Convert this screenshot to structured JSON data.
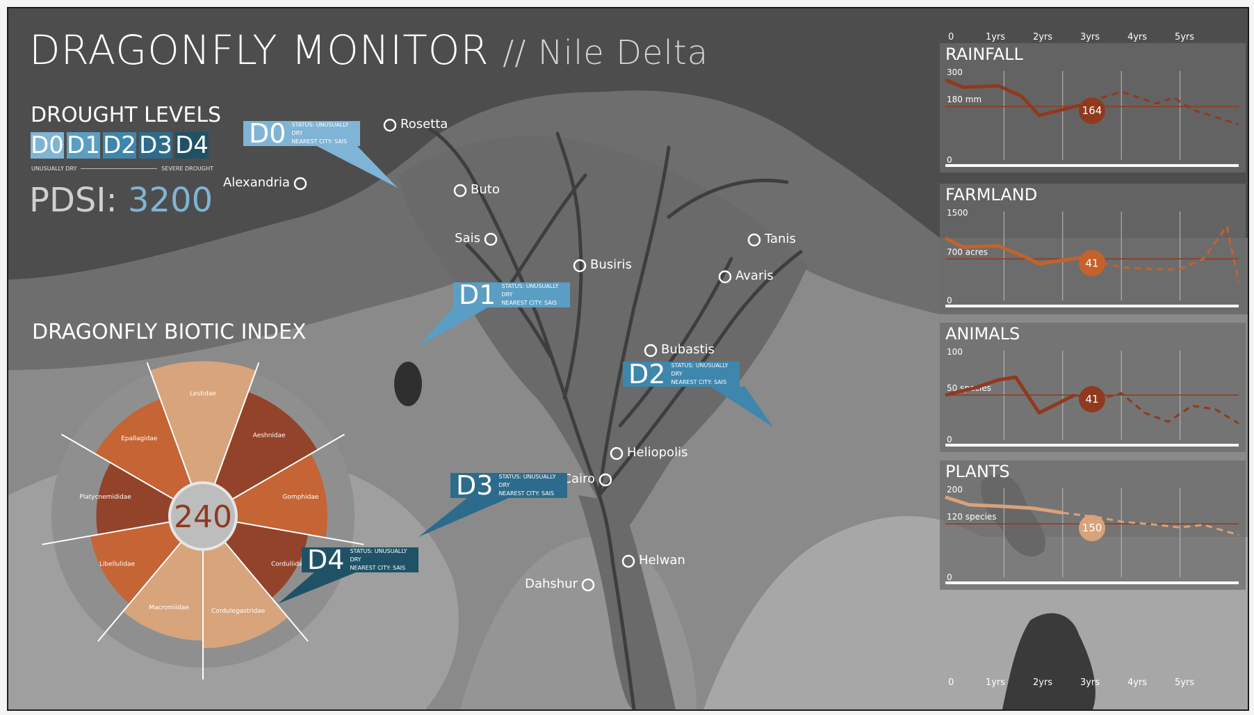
{
  "header": {
    "title": "DRAGONFLY MONITOR",
    "subtitle": "// Nile Delta"
  },
  "drought": {
    "title": "DROUGHT LEVELS",
    "levels": [
      {
        "code": "D0",
        "color": "#7fb4d6"
      },
      {
        "code": "D1",
        "color": "#5a9ec4"
      },
      {
        "code": "D2",
        "color": "#3f86ad"
      },
      {
        "code": "D3",
        "color": "#2d6b8c"
      },
      {
        "code": "D4",
        "color": "#1f5266"
      }
    ],
    "scale_left": "UNUSUALLY DRY",
    "scale_right": "SEVERE DROUGHT",
    "pdsi_label": "PDSI:",
    "pdsi_value": "3200"
  },
  "biotic": {
    "title": "DRAGONFLY BIOTIC INDEX",
    "center_value": "240"
  },
  "cities": [
    {
      "name": "Rosetta"
    },
    {
      "name": "Alexandria"
    },
    {
      "name": "Buto"
    },
    {
      "name": "Sais"
    },
    {
      "name": "Busiris"
    },
    {
      "name": "Tanis"
    },
    {
      "name": "Avaris"
    },
    {
      "name": "Bubastis"
    },
    {
      "name": "Heliopolis"
    },
    {
      "name": "Cairo"
    },
    {
      "name": "Helwan"
    },
    {
      "name": "Dahshur"
    }
  ],
  "callouts": [
    {
      "code": "D0",
      "status": "STATUS: UNUSUALLY DRY",
      "city": "NEAREST CITY: SAIS",
      "color": "#7fb4d6"
    },
    {
      "code": "D1",
      "status": "STATUS: UNUSUALLY DRY",
      "city": "NEAREST CITY: SAIS",
      "color": "#5a9ec4"
    },
    {
      "code": "D2",
      "status": "STATUS: UNUSUALLY DRY",
      "city": "NEAREST CITY: SAIS",
      "color": "#3f86ad"
    },
    {
      "code": "D3",
      "status": "STATUS: UNUSUALLY DRY",
      "city": "NEAREST CITY: SAIS",
      "color": "#2d6b8c"
    },
    {
      "code": "D4",
      "status": "STATUS: UNUSUALLY DRY",
      "city": "NEAREST CITY: SAIS",
      "color": "#1f5266"
    }
  ],
  "axis_labels": [
    "0",
    "1yrs",
    "2yrs",
    "3yrs",
    "4yrs",
    "5yrs"
  ],
  "chart_data": [
    {
      "type": "bar",
      "title": "DRAGONFLY BIOTIC INDEX",
      "center_value": 240,
      "categories": [
        "Lestidae",
        "Aeshnidae",
        "Gomphidae",
        "Corduliidae",
        "Cordulegastridae",
        "Macromiidae",
        "Libellulidae",
        "Platycnemididae",
        "Epallagidae"
      ],
      "values": [
        0.96,
        0.78,
        0.72,
        0.58,
        0.78,
        0.72,
        0.64,
        0.58,
        0.72
      ],
      "colors": [
        "#d7a47c",
        "#93432a",
        "#c56434",
        "#93432a",
        "#d7a47c",
        "#d7a47c",
        "#c56434",
        "#93432a",
        "#c56434"
      ]
    },
    {
      "type": "line",
      "title": "RAINFALL",
      "x": [
        0,
        0.3,
        0.9,
        1.3,
        1.6,
        2.3
      ],
      "values": [
        270,
        245,
        250,
        215,
        150,
        185
      ],
      "forecast_x": [
        2.3,
        2.5,
        3.0,
        3.6,
        3.9,
        4.2,
        5.0
      ],
      "forecast": [
        185,
        200,
        230,
        190,
        210,
        170,
        120
      ],
      "ylim": [
        0,
        300
      ],
      "ymax_label": "300",
      "ymin_label": "0",
      "threshold": 180,
      "threshold_label": "180 mm",
      "marker_x": 2.5,
      "marker_value": 164,
      "marker_label": "164",
      "line_color": "#8f3a1e",
      "marker_color": "#8f3a1e"
    },
    {
      "type": "line",
      "title": "FARMLAND",
      "x": [
        0,
        0.3,
        0.9,
        1.3,
        1.6,
        2.3
      ],
      "values": [
        1050,
        900,
        920,
        760,
        620,
        720
      ],
      "forecast_x": [
        2.3,
        2.6,
        3.0,
        3.6,
        4.0,
        4.4,
        4.8,
        5.0
      ],
      "forecast": [
        720,
        650,
        560,
        520,
        530,
        700,
        1250,
        300
      ],
      "ylim": [
        0,
        1500
      ],
      "ymax_label": "1500",
      "ymin_label": "0",
      "threshold": 700,
      "threshold_label": "700 acres",
      "marker_x": 2.5,
      "marker_value": 41,
      "marker_label": "41",
      "line_color": "#c5622b",
      "marker_color": "#c5622b"
    },
    {
      "type": "line",
      "title": "ANIMALS",
      "x": [
        0,
        0.5,
        0.9,
        1.2,
        1.6,
        2.2
      ],
      "values": [
        50,
        58,
        67,
        70,
        30,
        50
      ],
      "forecast_x": [
        2.2,
        2.6,
        3.0,
        3.4,
        3.8,
        4.2,
        4.6,
        5.0
      ],
      "forecast": [
        50,
        45,
        52,
        30,
        20,
        38,
        34,
        18
      ],
      "ylim": [
        0,
        100
      ],
      "ymax_label": "100",
      "ymin_label": "0",
      "threshold": 50,
      "threshold_label": "50 species",
      "marker_x": 2.5,
      "marker_value": 41,
      "marker_label": "41",
      "line_color": "#8f3a1e",
      "marker_color": "#8f3a1e"
    },
    {
      "type": "line",
      "title": "PLANTS",
      "x": [
        0,
        0.4,
        0.9,
        1.5,
        2.0
      ],
      "values": [
        180,
        163,
        160,
        155,
        145
      ],
      "forecast_x": [
        2.0,
        2.6,
        3.0,
        3.6,
        4.0,
        4.4,
        5.0
      ],
      "forecast": [
        145,
        135,
        125,
        118,
        112,
        118,
        95
      ],
      "ylim": [
        0,
        200
      ],
      "ymax_label": "200",
      "ymin_label": "0",
      "threshold": 120,
      "threshold_label": "120 species",
      "marker_x": 2.5,
      "marker_value": 150,
      "marker_label": "150",
      "line_color": "#d8a27a",
      "marker_color": "#d8a27a"
    }
  ]
}
